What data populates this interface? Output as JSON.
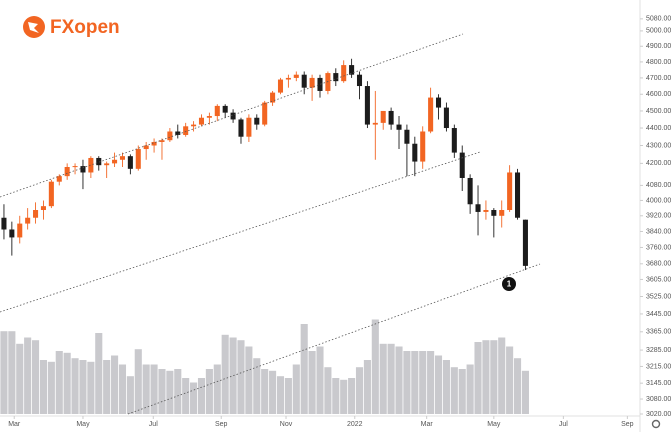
{
  "chart_data": {
    "type": "candlestick",
    "logo": "FXopen",
    "annotation": "1",
    "up_color": "#f26522",
    "down_color": "#1c1c1c",
    "log_scale": true,
    "xlim": [
      -0.5,
      80.5
    ],
    "ylim": [
      3012,
      5153
    ],
    "xticks": [
      {
        "value": 1.3,
        "label": "Mar"
      },
      {
        "value": 10.0,
        "label": "May"
      },
      {
        "value": 18.9,
        "label": "Jul"
      },
      {
        "value": 27.5,
        "label": "Sep"
      },
      {
        "value": 35.7,
        "label": "Nov"
      },
      {
        "value": 44.4,
        "label": "2022"
      },
      {
        "value": 53.5,
        "label": "Mar"
      },
      {
        "value": 62.0,
        "label": "May"
      },
      {
        "value": 70.8,
        "label": "Jul"
      },
      {
        "value": 78.9,
        "label": "Sep"
      }
    ],
    "yticks": [
      {
        "value": 5080,
        "label": "5080.00"
      },
      {
        "value": 5000,
        "label": "5000.00"
      },
      {
        "value": 4900,
        "label": "4900.00"
      },
      {
        "value": 4800,
        "label": "4800.00"
      },
      {
        "value": 4700,
        "label": "4700.00"
      },
      {
        "value": 4600,
        "label": "4600.00"
      },
      {
        "value": 4500,
        "label": "4500.00"
      },
      {
        "value": 4400,
        "label": "4400.00"
      },
      {
        "value": 4300,
        "label": "4300.00"
      },
      {
        "value": 4200,
        "label": "4200.00"
      },
      {
        "value": 4080,
        "label": "4080.00"
      },
      {
        "value": 4000,
        "label": "4000.00"
      },
      {
        "value": 3920,
        "label": "3920.00"
      },
      {
        "value": 3840,
        "label": "3840.00"
      },
      {
        "value": 3760,
        "label": "3760.00"
      },
      {
        "value": 3680,
        "label": "3680.00"
      },
      {
        "value": 3605,
        "label": "3605.00"
      },
      {
        "value": 3525,
        "label": "3525.00"
      },
      {
        "value": 3445,
        "label": "3445.00"
      },
      {
        "value": 3365,
        "label": "3365.00"
      },
      {
        "value": 3285,
        "label": "3285.00"
      },
      {
        "value": 3215,
        "label": "3215.00"
      },
      {
        "value": 3145,
        "label": "3145.00"
      },
      {
        "value": 3080,
        "label": "3080.00"
      },
      {
        "value": 3020,
        "label": "3020.00"
      }
    ],
    "x": [
      0,
      1,
      2,
      3,
      4,
      5,
      6,
      7,
      8,
      9,
      10,
      11,
      12,
      13,
      14,
      15,
      16,
      17,
      18,
      19,
      20,
      21,
      22,
      23,
      24,
      25,
      26,
      27,
      28,
      29,
      30,
      31,
      32,
      33,
      34,
      35,
      36,
      37,
      38,
      39,
      40,
      41,
      42,
      43,
      44,
      45,
      46,
      47,
      48,
      49,
      50,
      51,
      52,
      53,
      54,
      55,
      56,
      57,
      58,
      59,
      60,
      61,
      62,
      63,
      64,
      65,
      66
    ],
    "open": [
      3910,
      3850,
      3810,
      3880,
      3910,
      3950,
      3970,
      4100,
      4130,
      4180,
      4185,
      4150,
      4230,
      4190,
      4200,
      4220,
      4240,
      4170,
      4280,
      4300,
      4320,
      4330,
      4380,
      4360,
      4410,
      4420,
      4460,
      4470,
      4530,
      4490,
      4450,
      4350,
      4460,
      4420,
      4550,
      4610,
      4690,
      4700,
      4720,
      4640,
      4700,
      4620,
      4730,
      4680,
      4780,
      4720,
      4650,
      4420,
      4430,
      4500,
      4420,
      4390,
      4310,
      4210,
      4380,
      4580,
      4520,
      4400,
      4260,
      4120,
      3980,
      3940,
      3950,
      3920,
      3950,
      4150,
      3900
    ],
    "high": [
      3980,
      3890,
      3920,
      3960,
      3990,
      4000,
      4110,
      4140,
      4200,
      4200,
      4220,
      4240,
      4240,
      4210,
      4260,
      4260,
      4250,
      4300,
      4320,
      4340,
      4340,
      4400,
      4420,
      4430,
      4440,
      4480,
      4490,
      4540,
      4540,
      4510,
      4460,
      4480,
      4480,
      4560,
      4620,
      4700,
      4720,
      4740,
      4740,
      4720,
      4720,
      4740,
      4760,
      4810,
      4820,
      4740,
      4680,
      4620,
      4500,
      4520,
      4470,
      4420,
      4350,
      4410,
      4640,
      4600,
      4550,
      4420,
      4300,
      4140,
      4080,
      4000,
      3960,
      4000,
      4190,
      4170,
      3900
    ],
    "low": [
      3800,
      3720,
      3780,
      3850,
      3880,
      3900,
      3960,
      4080,
      4110,
      4140,
      4060,
      4120,
      4160,
      4120,
      4180,
      4180,
      4140,
      4160,
      4220,
      4260,
      4220,
      4320,
      4340,
      4350,
      4380,
      4410,
      4420,
      4440,
      4460,
      4430,
      4310,
      4320,
      4390,
      4410,
      4530,
      4600,
      4640,
      4680,
      4600,
      4560,
      4580,
      4600,
      4650,
      4670,
      4700,
      4570,
      4400,
      4220,
      4390,
      4390,
      4280,
      4130,
      4130,
      4170,
      4370,
      4450,
      4380,
      4230,
      4050,
      3930,
      3820,
      3900,
      3810,
      3860,
      3940,
      3900,
      3650
    ],
    "close": [
      3850,
      3810,
      3880,
      3910,
      3950,
      3970,
      4100,
      4130,
      4180,
      4185,
      4150,
      4230,
      4190,
      4200,
      4220,
      4240,
      4170,
      4280,
      4300,
      4320,
      4330,
      4380,
      4360,
      4410,
      4420,
      4460,
      4470,
      4530,
      4490,
      4450,
      4350,
      4460,
      4420,
      4550,
      4610,
      4690,
      4700,
      4720,
      4640,
      4700,
      4620,
      4730,
      4680,
      4780,
      4720,
      4650,
      4420,
      4430,
      4500,
      4420,
      4390,
      4310,
      4210,
      4380,
      4580,
      4520,
      4400,
      4260,
      4120,
      3980,
      3940,
      3950,
      3920,
      3950,
      4150,
      3910,
      3670
    ],
    "volume": {
      "color": "#c9c9cd",
      "values": [
        92,
        92,
        78,
        85,
        82,
        60,
        58,
        70,
        68,
        62,
        60,
        58,
        90,
        60,
        65,
        55,
        42,
        72,
        55,
        55,
        50,
        48,
        50,
        40,
        35,
        40,
        50,
        55,
        88,
        85,
        82,
        75,
        62,
        50,
        48,
        42,
        40,
        55,
        100,
        70,
        75,
        52,
        40,
        38,
        40,
        52,
        60,
        105,
        78,
        78,
        75,
        70,
        70,
        70,
        70,
        65,
        60,
        52,
        50,
        55,
        80,
        82,
        82,
        85,
        75,
        62,
        48
      ]
    }
  }
}
